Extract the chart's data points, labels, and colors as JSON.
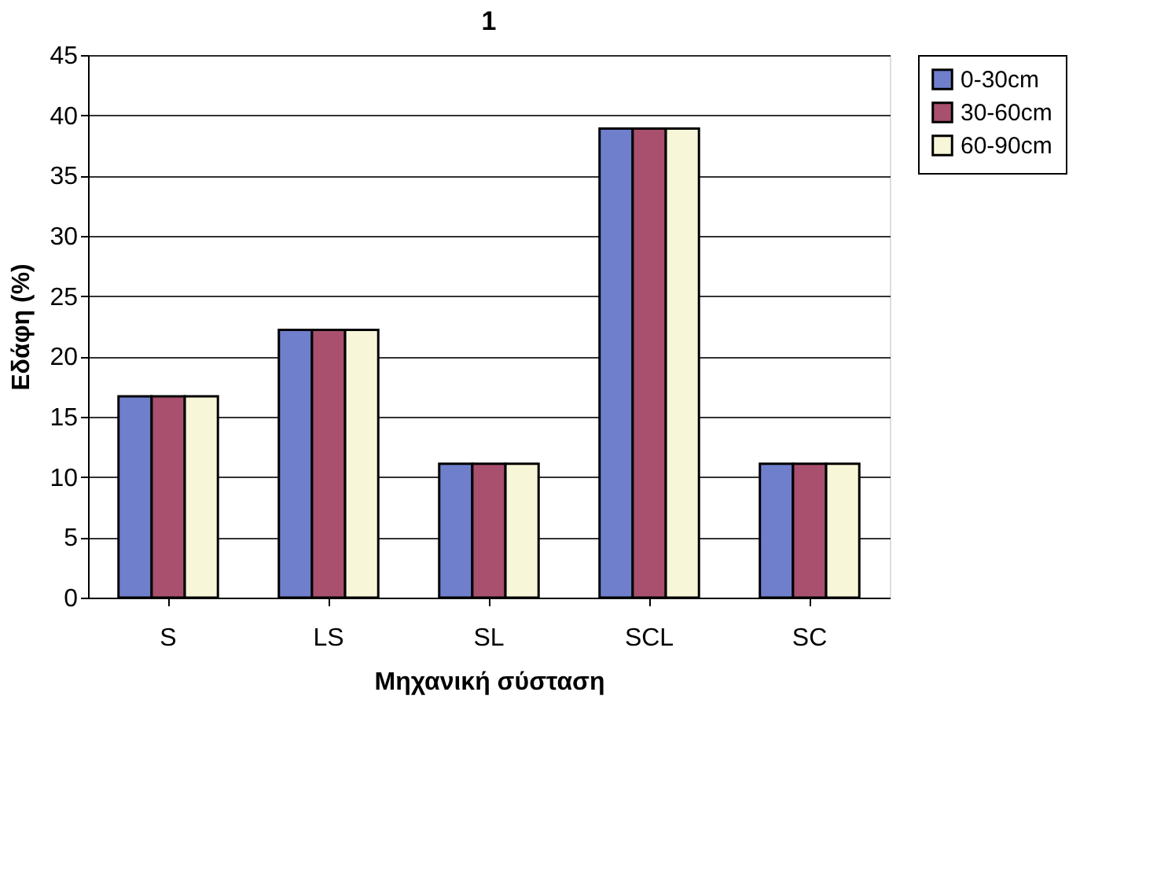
{
  "chart_data": {
    "type": "bar",
    "title": "1",
    "xlabel": "Μηχανική σύσταση",
    "ylabel": "Εδάφη (%)",
    "categories": [
      "S",
      "LS",
      "SL",
      "SCL",
      "SC"
    ],
    "series": [
      {
        "name": "0-30cm",
        "color": "#6f7fcc",
        "values": [
          16.7,
          22.2,
          11.1,
          38.9,
          11.1
        ]
      },
      {
        "name": "30-60cm",
        "color": "#a8506e",
        "values": [
          16.7,
          22.2,
          11.1,
          38.9,
          11.1
        ]
      },
      {
        "name": "60-90cm",
        "color": "#f8f6d8",
        "values": [
          16.7,
          22.2,
          11.1,
          38.9,
          11.1
        ]
      }
    ],
    "ylim": [
      0,
      45
    ],
    "yticks": [
      0,
      5,
      10,
      15,
      20,
      25,
      30,
      35,
      40,
      45
    ],
    "grid": "y",
    "legend": "right"
  }
}
